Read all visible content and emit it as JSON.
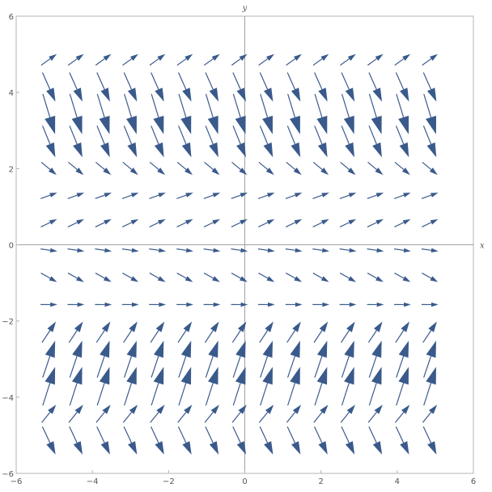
{
  "chart_data": {
    "type": "vector_field",
    "title": "",
    "xlabel": "x",
    "ylabel": "y",
    "xlim": [
      -6,
      6
    ],
    "ylim": [
      -6,
      6
    ],
    "xticks": [
      -6,
      -4,
      -2,
      0,
      2,
      4,
      6
    ],
    "yticks": [
      -6,
      -4,
      -2,
      0,
      2,
      4,
      6
    ],
    "xtick_labels": [
      "−6",
      "−4",
      "−2",
      "0",
      "2",
      "4",
      "6"
    ],
    "ytick_labels": [
      "−6",
      "−4",
      "−2",
      "0",
      "2",
      "4",
      "6"
    ],
    "grid": false,
    "colors": {
      "arrow": "#3a5a8c",
      "axis": "#a0a0a0",
      "frame": "#b4b4b4"
    },
    "field": {
      "u": "1",
      "v": "y*cos(y)",
      "x_samples": [
        -5.14,
        -4.43,
        -3.71,
        -3.0,
        -2.29,
        -1.57,
        -0.86,
        -0.14,
        0.57,
        1.29,
        2.0,
        2.71,
        3.43,
        4.14,
        4.86,
        5.14
      ],
      "y_samples": [
        -5.14,
        -4.43,
        -3.71,
        -3.0,
        -2.29,
        -1.57,
        -0.86,
        -0.14,
        0.57,
        1.29,
        2.0,
        2.71,
        3.43,
        4.14,
        4.86,
        5.14
      ]
    }
  }
}
